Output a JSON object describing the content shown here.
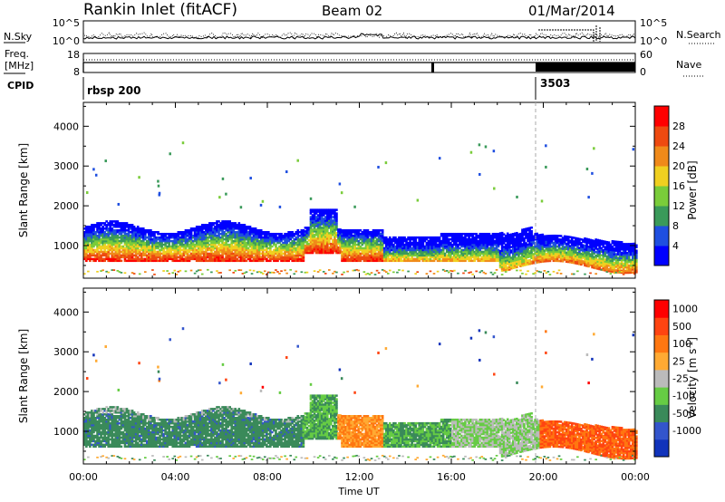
{
  "header": {
    "station": "Rankin Inlet (fitACF)",
    "beam": "Beam 02",
    "date": "01/Mar/2014"
  },
  "top_panels": {
    "nsky_label": "N.Sky",
    "nsearch_label": "N.Search",
    "noise_ticks_left": [
      "10^5",
      "10^0"
    ],
    "noise_ticks_right": [
      "10^5",
      "10^0"
    ],
    "freq_label_1": "Freq.",
    "freq_label_2": "[MHz]",
    "freq_ticks": [
      "18",
      "8"
    ],
    "nave_label": "Nave",
    "nave_ticks": [
      "60",
      "0"
    ],
    "cpid_label": "CPID",
    "cpid_entries": [
      {
        "name": "rbsp 200",
        "start_hour": 0
      },
      {
        "name": "3503",
        "start_hour": 20
      }
    ]
  },
  "chart_data": [
    {
      "type": "heatmap",
      "name": "power",
      "ylabel": "Slant Range [km]",
      "ylim": [
        180,
        4600
      ],
      "yticks": [
        1000,
        2000,
        3000,
        4000
      ],
      "xlim": [
        0,
        24
      ],
      "xticks": [
        0,
        4,
        8,
        12,
        16,
        20,
        24
      ],
      "colorbar": {
        "label": "Power [dB]",
        "ticks": [
          "4",
          "8",
          "12",
          "16",
          "20",
          "24",
          "28"
        ],
        "colors": [
          "#0000ff",
          "#1f4fe0",
          "#3a9a5a",
          "#7acc3a",
          "#f0d020",
          "#f08a1a",
          "#ee4a10",
          "#ff0000"
        ]
      }
    },
    {
      "type": "heatmap",
      "name": "velocity",
      "ylabel": "Slant Range [km]",
      "ylim": [
        180,
        4600
      ],
      "yticks": [
        1000,
        2000,
        3000,
        4000
      ],
      "xlim": [
        0,
        24
      ],
      "xticks": [
        0,
        4,
        8,
        12,
        16,
        20,
        24
      ],
      "colorbar": {
        "label": "Velocity [m s",
        "label_sup": "-1",
        "label_end": "]",
        "ticks": [
          "1000",
          "500",
          "100",
          "25",
          "-25",
          "-100",
          "-500",
          "-1000"
        ],
        "colors": [
          "#1133bb",
          "#3355cc",
          "#3a8a5a",
          "#66cc44",
          "#bbbbbb",
          "#ffaa33",
          "#ff7711",
          "#ff4411",
          "#ff0000"
        ]
      }
    }
  ],
  "x_axis": {
    "tick_labels": [
      "00:00",
      "04:00",
      "08:00",
      "12:00",
      "16:00",
      "20:00",
      "00:00"
    ],
    "label": "Time UT"
  }
}
